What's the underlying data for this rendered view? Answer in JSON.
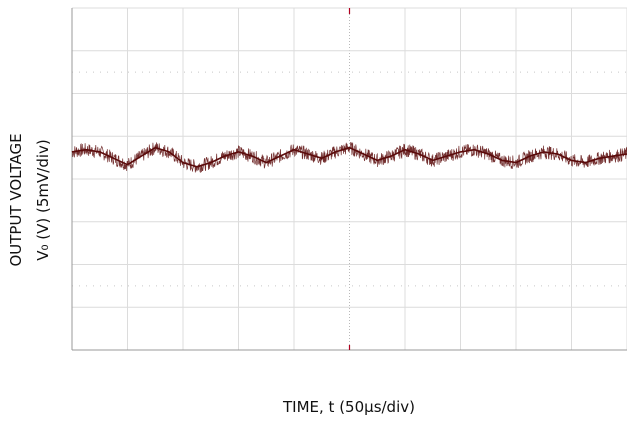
{
  "chart_data": {
    "type": "line",
    "title": "",
    "xlabel": "TIME, t (50µs/div)",
    "ylabel_line1": "OUTPUT VOLTAGE",
    "ylabel_line2": "V₀ (V) (5mV/div)",
    "x_divisions": 10,
    "y_divisions": 8,
    "grid": true,
    "trace_color": "#5a0a0a",
    "series": [
      {
        "x_div": [
          0,
          0.25,
          0.5,
          0.75,
          1.0,
          1.25,
          1.5,
          1.75,
          2.0,
          2.25,
          2.5,
          2.75,
          3.0,
          3.25,
          3.5,
          3.75,
          4.0,
          4.25,
          4.5,
          4.75,
          5.0,
          5.25,
          5.5,
          5.75,
          6.0,
          6.25,
          6.5,
          6.75,
          7.0,
          7.25,
          7.5,
          7.75,
          8.0,
          8.25,
          8.5,
          8.75,
          9.0,
          9.25,
          9.5,
          9.75,
          10.0
        ],
        "y_div": [
          0.05,
          0.1,
          0.05,
          -0.1,
          -0.25,
          -0.05,
          0.15,
          0.05,
          -0.2,
          -0.3,
          -0.2,
          -0.05,
          0.05,
          -0.05,
          -0.2,
          -0.05,
          0.1,
          0.0,
          -0.1,
          0.05,
          0.15,
          0.0,
          -0.15,
          -0.05,
          0.1,
          0.0,
          -0.15,
          -0.05,
          0.05,
          0.1,
          0.0,
          -0.15,
          -0.2,
          -0.05,
          0.05,
          0.0,
          -0.15,
          -0.2,
          -0.1,
          -0.05,
          0.0
        ]
      }
    ]
  }
}
